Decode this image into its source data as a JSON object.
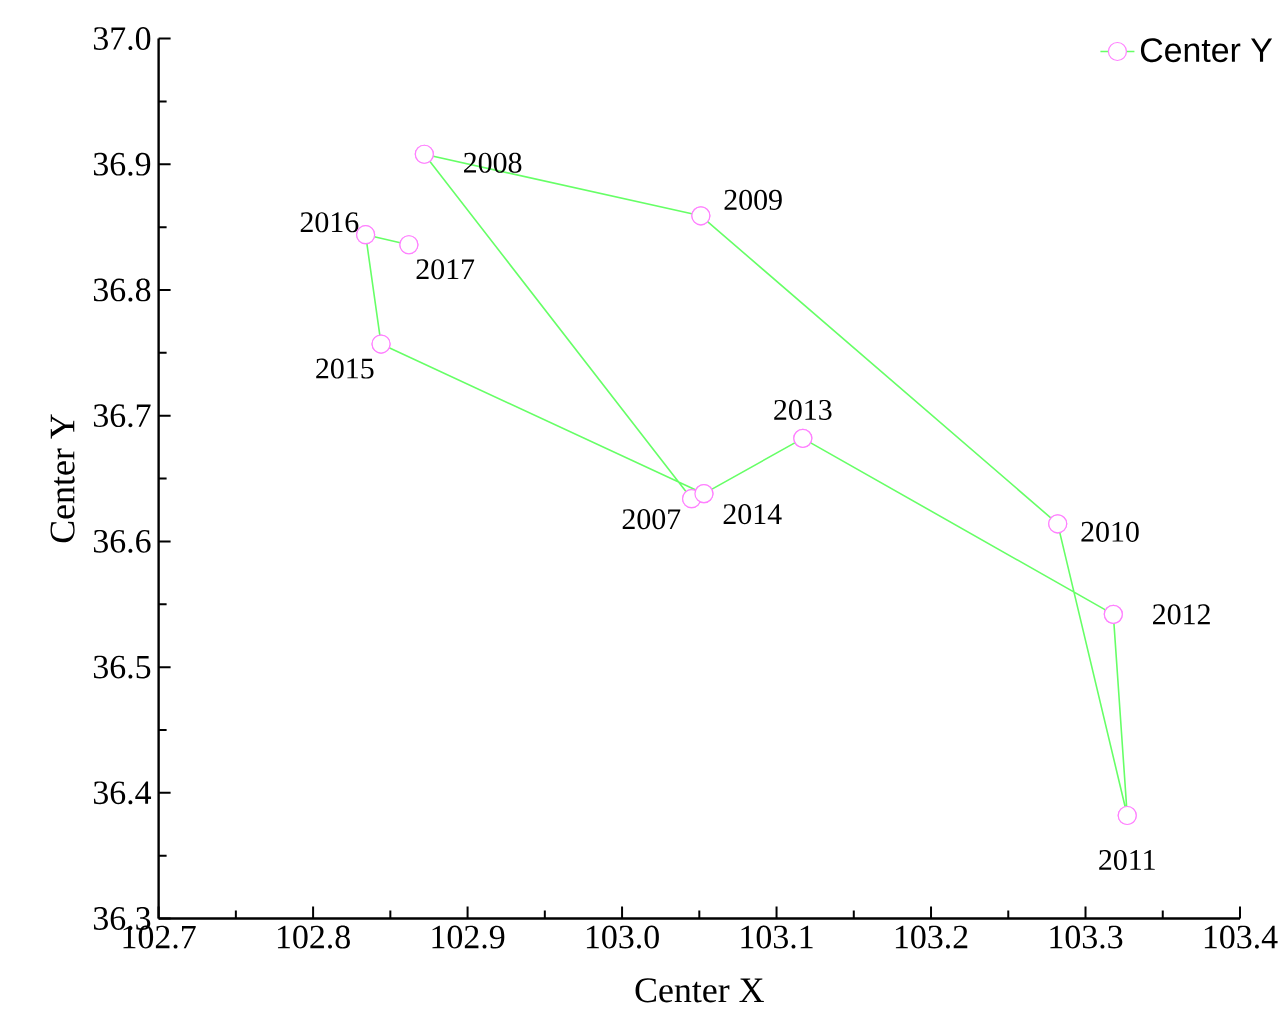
{
  "chart_data": {
    "type": "line",
    "xlabel": "Center X",
    "ylabel": "Center Y",
    "xlim": [
      102.7,
      103.4
    ],
    "ylim": [
      36.3,
      37.0
    ],
    "xticks": [
      {
        "value": 102.7,
        "label": "102.7"
      },
      {
        "value": 102.8,
        "label": "102.8"
      },
      {
        "value": 102.9,
        "label": "102.9"
      },
      {
        "value": 103.0,
        "label": "103.0"
      },
      {
        "value": 103.1,
        "label": "103.1"
      },
      {
        "value": 103.2,
        "label": "103.2"
      },
      {
        "value": 103.3,
        "label": "103.3"
      },
      {
        "value": 103.4,
        "label": "103.4"
      }
    ],
    "yticks": [
      {
        "value": 36.3,
        "label": "36.3"
      },
      {
        "value": 36.4,
        "label": "36.4"
      },
      {
        "value": 36.5,
        "label": "36.5"
      },
      {
        "value": 36.6,
        "label": "36.6"
      },
      {
        "value": 36.7,
        "label": "36.7"
      },
      {
        "value": 36.8,
        "label": "36.8"
      },
      {
        "value": 36.9,
        "label": "36.9"
      },
      {
        "value": 37.0,
        "label": "37.0"
      }
    ],
    "marker": "circle",
    "legend": "top right",
    "grid": false,
    "series": [
      {
        "name": "Center Y",
        "color": "#66ff66",
        "colors": [
          "#ff80ff",
          "#ff80ff",
          "#ff80ff",
          "#ff80ff",
          "#ff80ff",
          "#ff80ff",
          "#ff80ff",
          "#ff80ff",
          "#ff80ff",
          "#ff80ff",
          "#ff80ff"
        ],
        "x": [
          103.045,
          102.872,
          103.051,
          103.282,
          103.327,
          103.318,
          103.117,
          103.053,
          102.844,
          102.834,
          102.862
        ],
        "values": [
          36.634,
          36.908,
          36.859,
          36.614,
          36.382,
          36.542,
          36.682,
          36.638,
          36.757,
          36.844,
          36.836
        ]
      }
    ],
    "annotations": [
      {
        "text": "2007",
        "x": 103.045,
        "y": 36.634
      },
      {
        "text": "2008",
        "x": 102.872,
        "y": 36.908
      },
      {
        "text": "2009",
        "x": 103.051,
        "y": 36.859
      },
      {
        "text": "2010",
        "x": 103.282,
        "y": 36.614
      },
      {
        "text": "2011",
        "x": 103.327,
        "y": 36.382
      },
      {
        "text": "2012",
        "x": 103.318,
        "y": 36.542
      },
      {
        "text": "2013",
        "x": 103.117,
        "y": 36.682
      },
      {
        "text": "2014",
        "x": 103.053,
        "y": 36.638
      },
      {
        "text": "2015",
        "x": 102.844,
        "y": 36.757
      },
      {
        "text": "2016",
        "x": 102.834,
        "y": 36.844
      },
      {
        "text": "2017",
        "x": 102.862,
        "y": 36.836
      }
    ]
  }
}
